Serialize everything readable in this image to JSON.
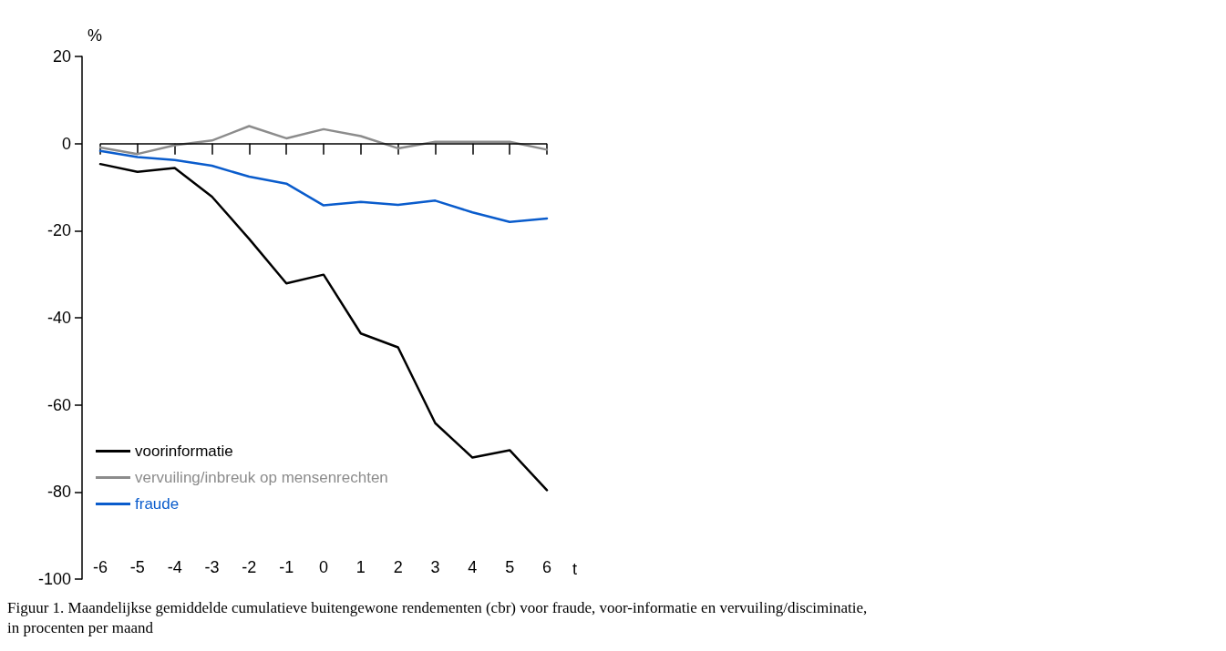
{
  "chart_data": {
    "type": "line",
    "xlabel": "t",
    "ylabel": "%",
    "x": [
      -6,
      -5,
      -4,
      -3,
      -2,
      -1,
      0,
      1,
      2,
      3,
      4,
      5,
      6
    ],
    "series": [
      {
        "name": "voorinformatie",
        "color": "#000000",
        "values": [
          -4.7,
          -6.5,
          -5.6,
          -12.2,
          -21.9,
          -32.1,
          -30.1,
          -43.6,
          -46.8,
          -64.2,
          -72.1,
          -70.4,
          -79.6
        ]
      },
      {
        "name": "vervuiling/inbreuk op mensenrechten",
        "color": "#8c8c8c",
        "values": [
          -0.9,
          -2.4,
          -0.4,
          0.7,
          4.0,
          1.2,
          3.3,
          1.7,
          -1.1,
          0.4,
          0.4,
          0.4,
          -1.4
        ]
      },
      {
        "name": "fraude",
        "color": "#0a5ccc",
        "values": [
          -1.7,
          -3.1,
          -3.8,
          -5.1,
          -7.6,
          -9.2,
          -14.2,
          -13.4,
          -14.1,
          -13.1,
          -15.8,
          -18.0,
          -17.2
        ]
      }
    ],
    "xlim": [
      -6,
      6
    ],
    "xticks": [
      -6,
      -5,
      -4,
      -3,
      -2,
      -1,
      0,
      1,
      2,
      3,
      4,
      5,
      6
    ],
    "ylim": [
      -100,
      20
    ],
    "yticks": [
      -100,
      -80,
      -60,
      -40,
      -20,
      0,
      20
    ],
    "ref_lines": [
      {
        "axis": "y",
        "value": 0,
        "color": "#000000"
      }
    ],
    "grid": false,
    "legend": "bottom left",
    "marker": "none",
    "line_style": "solid",
    "annotations": [
      "Figuur 1. Maandelijkse gemiddelde cumulatieve buitengewone rendementen (cbr) voor fraude, voor-informatie en vervuiling/disciminatie, in procenten per maand"
    ]
  }
}
